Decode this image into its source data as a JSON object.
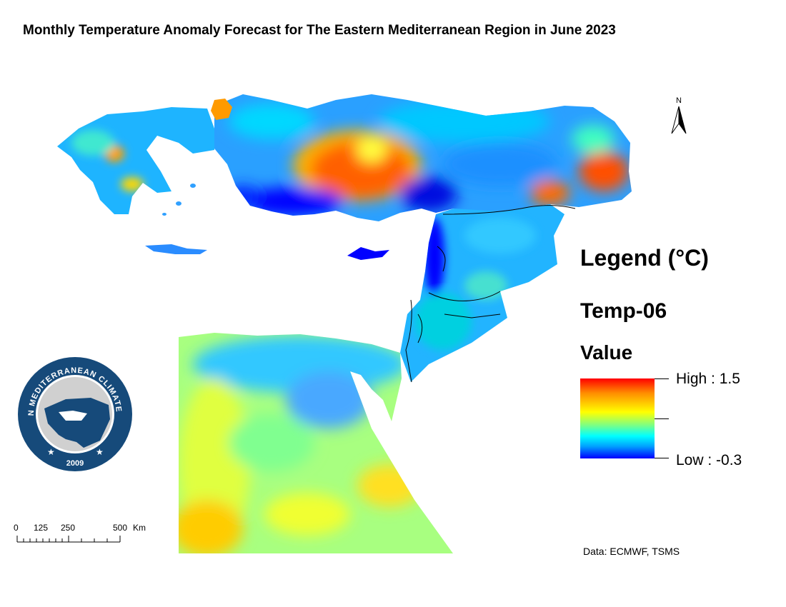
{
  "title": "Monthly Temperature Anomaly Forecast for The Eastern Mediterranean Region in June 2023",
  "legend": {
    "heading": "Legend (°C)",
    "layer": "Temp-06",
    "field": "Value",
    "high_label": "High : 1.5",
    "low_label": "Low : -0.3",
    "high": 1.5,
    "low": -0.3,
    "colors": [
      "#ff0000",
      "#ffff00",
      "#00ffff",
      "#0000ff"
    ]
  },
  "north_arrow": "N",
  "scale_bar": {
    "labels": [
      "0",
      "125",
      "250",
      "500"
    ],
    "unit": "Km"
  },
  "logo": {
    "text_top": "EASTERN MEDITERRANEAN CLIMATE CENTRE",
    "year": "2009",
    "icon": "emcc-logo-icon"
  },
  "credit": "Data: ECMWF, TSMS"
}
